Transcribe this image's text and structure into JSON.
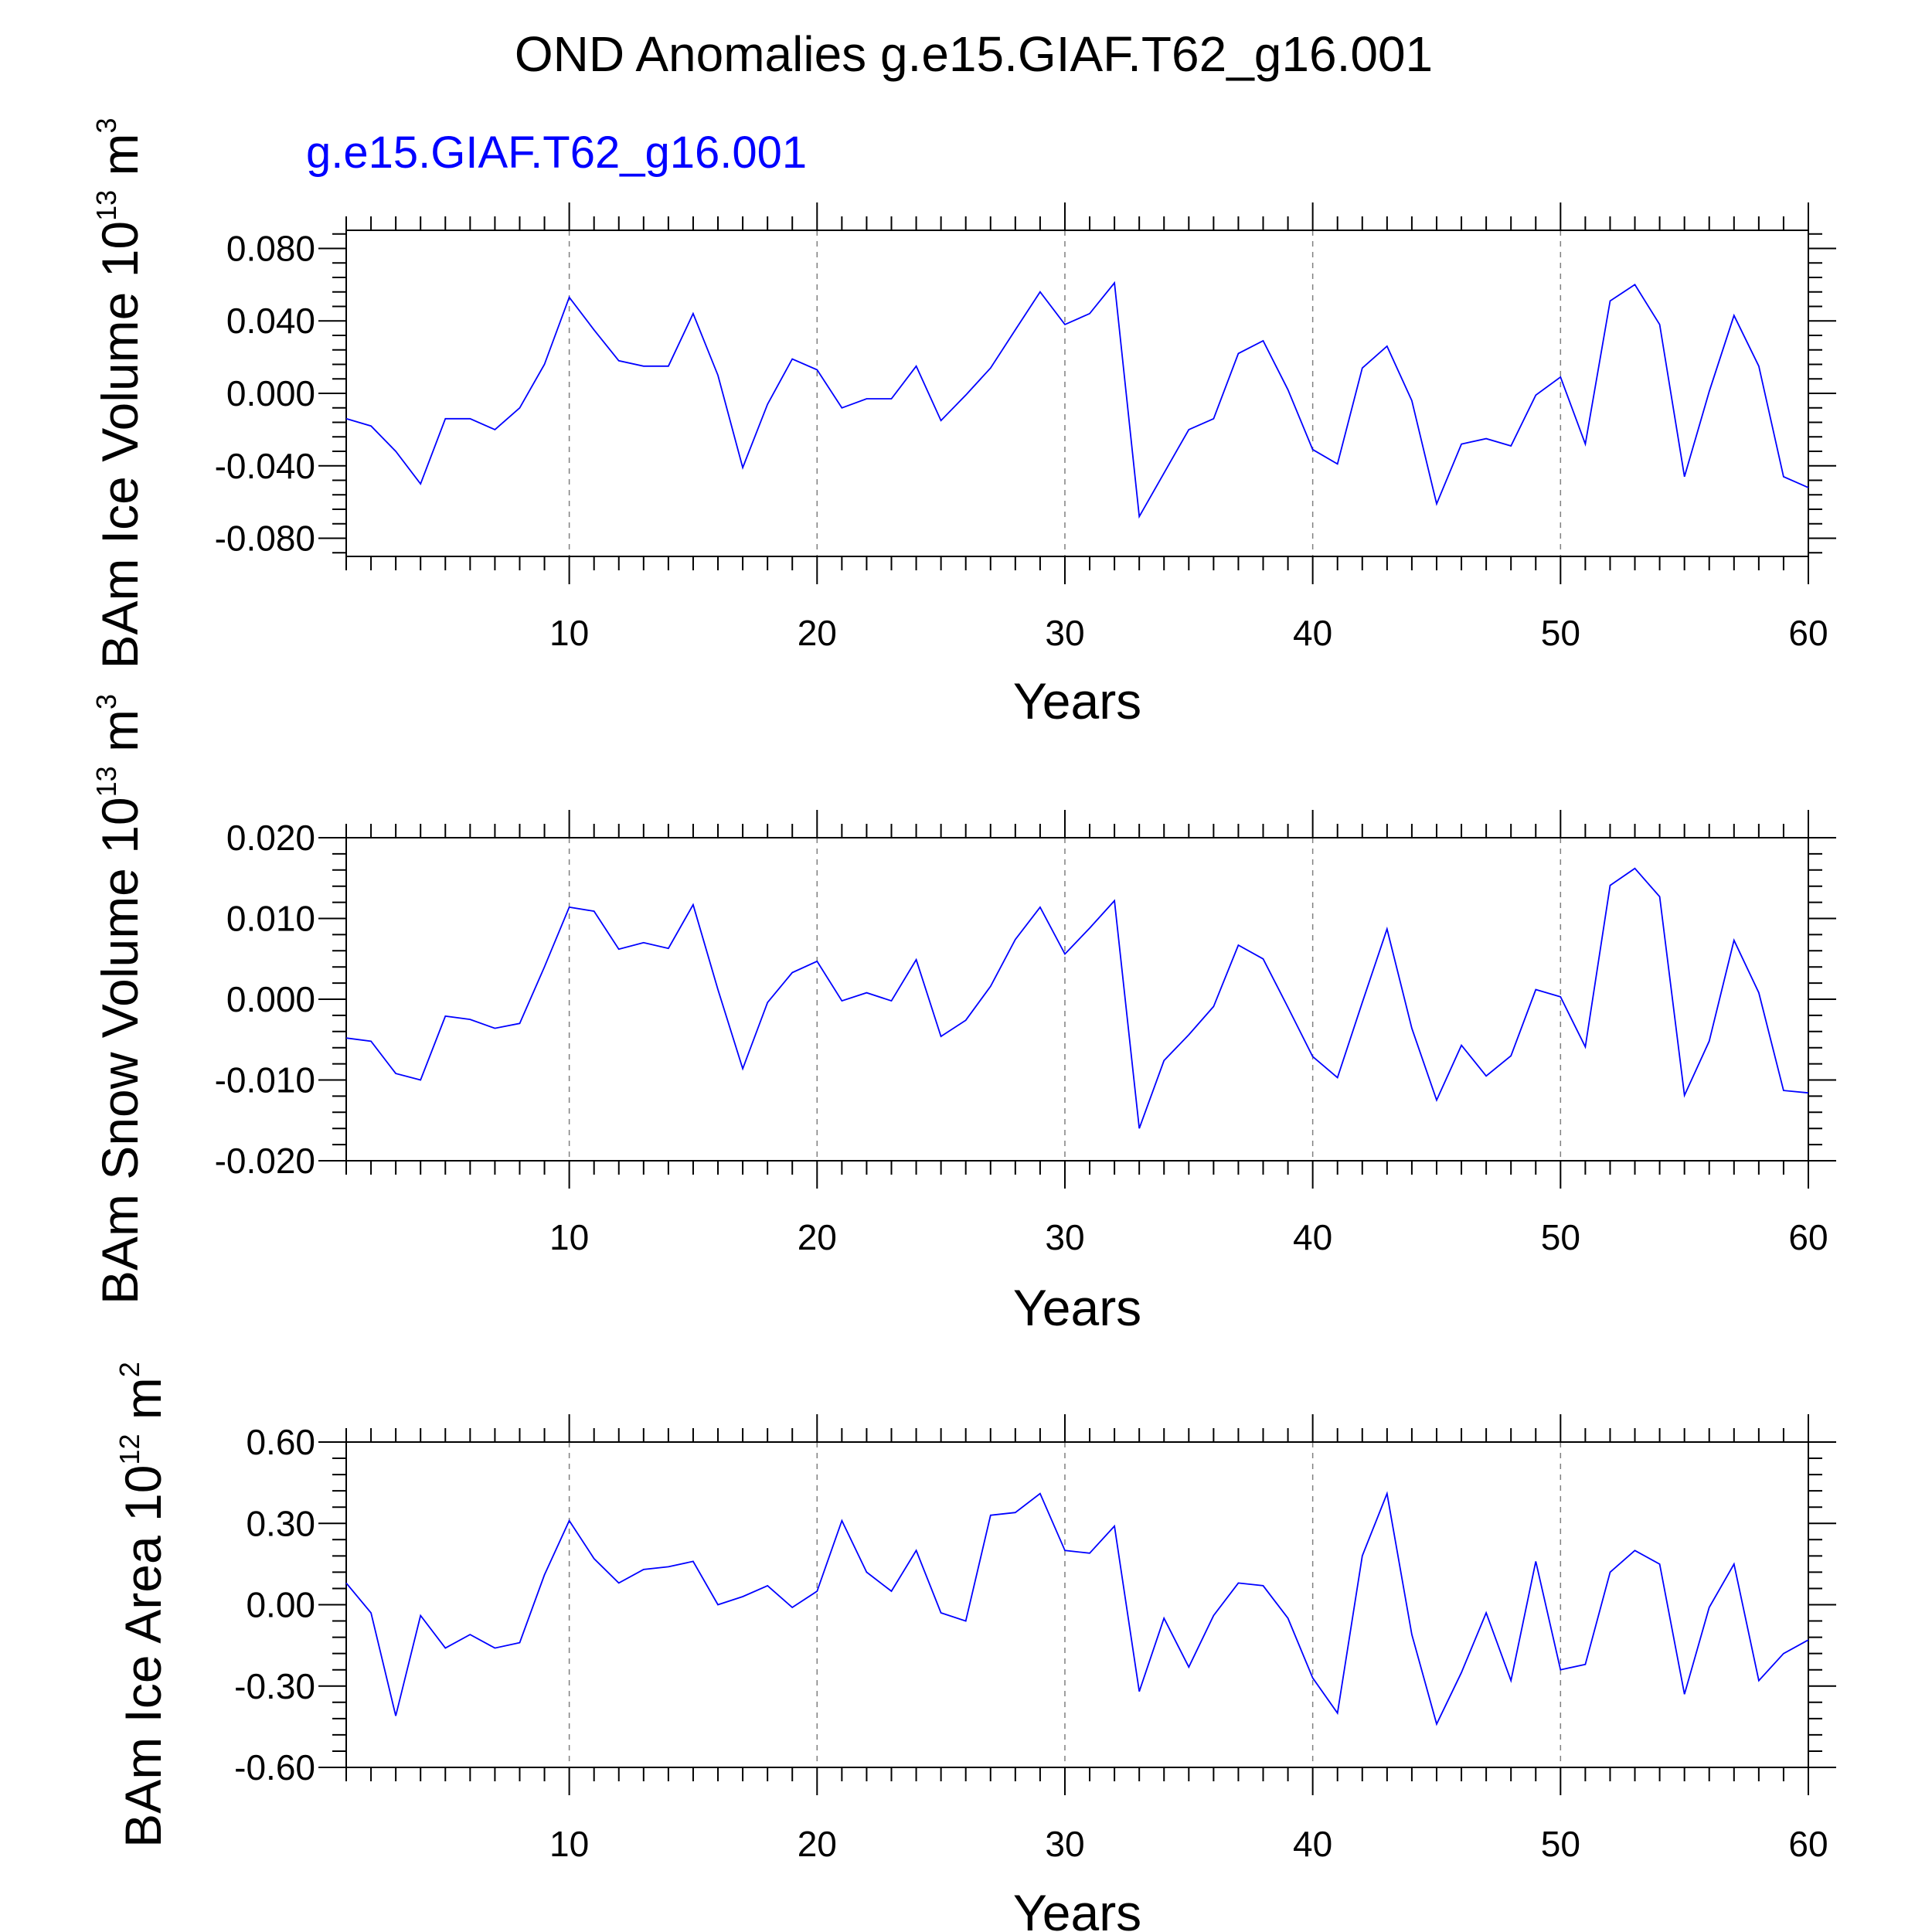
{
  "title": "OND Anomalies g.e15.GIAF.T62_g16.001",
  "subtitle": "g.e15.GIAF.T62_g16.001",
  "colors": {
    "series": "#0000ff",
    "axis": "#000000",
    "grid": "#808080"
  },
  "chart_data": [
    {
      "type": "line",
      "xlabel": "Years",
      "ylabel": {
        "text": "BAm Ice Volume 10",
        "exp": "13",
        "unit": " m",
        "unit_exp": "3"
      },
      "xlim": [
        1,
        60
      ],
      "ylim": [
        -0.09,
        0.09
      ],
      "xticks": [
        10,
        20,
        30,
        40,
        50,
        60
      ],
      "yticks": [
        -0.08,
        -0.04,
        0.0,
        0.04,
        0.08
      ],
      "ytick_labels": [
        "-0.080",
        "-0.040",
        "0.000",
        "0.040",
        "0.080"
      ],
      "grid": "vertical dashed at major x ticks",
      "series": [
        {
          "x": [
            1,
            2,
            3,
            4,
            5,
            6,
            7,
            8,
            9,
            10,
            11,
            12,
            13,
            14,
            15,
            16,
            17,
            18,
            19,
            20,
            21,
            22,
            23,
            24,
            25,
            26,
            27,
            28,
            29,
            30,
            31,
            32,
            33,
            34,
            35,
            36,
            37,
            38,
            39,
            40,
            41,
            42,
            43,
            44,
            45,
            46,
            47,
            48,
            49,
            50,
            51,
            52,
            53,
            54,
            55,
            56,
            57,
            58,
            59,
            60
          ],
          "values": [
            -0.014,
            -0.018,
            -0.032,
            -0.05,
            -0.014,
            -0.014,
            -0.02,
            -0.008,
            0.016,
            0.053,
            0.035,
            0.018,
            0.015,
            0.015,
            0.044,
            0.01,
            -0.041,
            -0.006,
            0.019,
            0.013,
            -0.008,
            -0.003,
            -0.003,
            0.015,
            -0.015,
            -0.001,
            0.014,
            0.035,
            0.056,
            0.038,
            0.044,
            0.061,
            -0.068,
            -0.044,
            -0.02,
            -0.014,
            0.022,
            0.029,
            0.002,
            -0.031,
            -0.039,
            0.014,
            0.026,
            -0.004,
            -0.061,
            -0.028,
            -0.025,
            -0.029,
            -0.001,
            0.009,
            -0.028,
            0.051,
            0.06,
            0.038,
            -0.046,
            0.001,
            0.043,
            0.015,
            -0.046,
            -0.052
          ]
        }
      ]
    },
    {
      "type": "line",
      "xlabel": "Years",
      "ylabel": {
        "text": "BAm Snow Volume 10",
        "exp": "13",
        "unit": " m",
        "unit_exp": "3"
      },
      "xlim": [
        1,
        60
      ],
      "ylim": [
        -0.02,
        0.02
      ],
      "xticks": [
        10,
        20,
        30,
        40,
        50,
        60
      ],
      "yticks": [
        -0.02,
        -0.01,
        0.0,
        0.01,
        0.02
      ],
      "ytick_labels": [
        "-0.020",
        "-0.010",
        "0.000",
        "0.010",
        "0.020"
      ],
      "grid": "vertical dashed at major x ticks",
      "series": [
        {
          "x": [
            1,
            2,
            3,
            4,
            5,
            6,
            7,
            8,
            9,
            10,
            11,
            12,
            13,
            14,
            15,
            16,
            17,
            18,
            19,
            20,
            21,
            22,
            23,
            24,
            25,
            26,
            27,
            28,
            29,
            30,
            31,
            32,
            33,
            34,
            35,
            36,
            37,
            38,
            39,
            40,
            41,
            42,
            43,
            44,
            45,
            46,
            47,
            48,
            49,
            50,
            51,
            52,
            53,
            54,
            55,
            56,
            57,
            58,
            59,
            60
          ],
          "values": [
            -0.0048,
            -0.0052,
            -0.0092,
            -0.01,
            -0.0021,
            -0.0025,
            -0.0036,
            -0.003,
            0.004,
            0.0114,
            0.0109,
            0.0062,
            0.007,
            0.0063,
            0.0117,
            0.0012,
            -0.0086,
            -0.0004,
            0.0033,
            0.0047,
            -0.0002,
            0.0008,
            -0.0002,
            0.0049,
            -0.0046,
            -0.0026,
            0.0016,
            0.0074,
            0.0114,
            0.0056,
            0.0088,
            0.0122,
            -0.016,
            -0.0076,
            -0.0044,
            -0.0009,
            0.0067,
            0.005,
            -0.001,
            -0.0071,
            -0.0097,
            -0.0004,
            0.0087,
            -0.0036,
            -0.0125,
            -0.0057,
            -0.0095,
            -0.007,
            0.0012,
            0.0003,
            -0.0059,
            0.0141,
            0.0162,
            0.0127,
            -0.0119,
            -0.0052,
            0.0073,
            0.0008,
            -0.0113,
            -0.0116
          ]
        }
      ]
    },
    {
      "type": "line",
      "xlabel": "Years",
      "ylabel": {
        "text": "BAm Ice Area 10",
        "exp": "12",
        "unit": " m",
        "unit_exp": "2"
      },
      "xlim": [
        1,
        60
      ],
      "ylim": [
        -0.6,
        0.6
      ],
      "xticks": [
        10,
        20,
        30,
        40,
        50,
        60
      ],
      "yticks": [
        -0.6,
        -0.3,
        0.0,
        0.3,
        0.6
      ],
      "ytick_labels": [
        "-0.60",
        "-0.30",
        "0.00",
        "0.30",
        "0.60"
      ],
      "grid": "vertical dashed at major x ticks",
      "series": [
        {
          "x": [
            1,
            2,
            3,
            4,
            5,
            6,
            7,
            8,
            9,
            10,
            11,
            12,
            13,
            14,
            15,
            16,
            17,
            18,
            19,
            20,
            21,
            22,
            23,
            24,
            25,
            26,
            27,
            28,
            29,
            30,
            31,
            32,
            33,
            34,
            35,
            36,
            37,
            38,
            39,
            40,
            41,
            42,
            43,
            44,
            45,
            46,
            47,
            48,
            49,
            50,
            51,
            52,
            53,
            54,
            55,
            56,
            57,
            58,
            59,
            60
          ],
          "values": [
            0.08,
            -0.03,
            -0.41,
            -0.04,
            -0.16,
            -0.11,
            -0.16,
            -0.14,
            0.11,
            0.31,
            0.17,
            0.08,
            0.13,
            0.14,
            0.16,
            0.0,
            0.03,
            0.07,
            -0.01,
            0.05,
            0.31,
            0.12,
            0.05,
            0.2,
            -0.03,
            -0.06,
            0.33,
            0.34,
            0.41,
            0.2,
            0.19,
            0.29,
            -0.32,
            -0.05,
            -0.23,
            -0.04,
            0.08,
            0.07,
            -0.05,
            -0.27,
            -0.4,
            0.18,
            0.41,
            -0.11,
            -0.44,
            -0.25,
            -0.03,
            -0.28,
            0.16,
            -0.24,
            -0.22,
            0.12,
            0.2,
            0.15,
            -0.33,
            -0.01,
            0.15,
            -0.28,
            -0.18,
            -0.13
          ]
        }
      ]
    }
  ]
}
